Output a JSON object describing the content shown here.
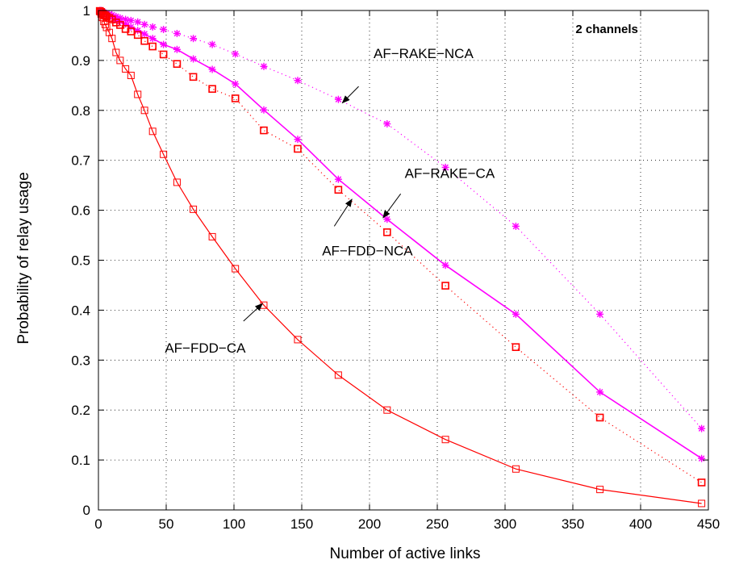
{
  "chart_data": {
    "type": "line",
    "xlabel": "Number of active links",
    "ylabel": "Probability of relay usage",
    "xlim": [
      0,
      450
    ],
    "ylim": [
      0,
      1
    ],
    "xticks": [
      0,
      50,
      100,
      150,
      200,
      250,
      300,
      350,
      400,
      450
    ],
    "yticks": [
      0,
      0.1,
      0.2,
      0.3,
      0.4,
      0.5,
      0.6,
      0.7,
      0.8,
      0.9,
      1
    ],
    "ytick_labels": [
      "0",
      "0.1",
      "0.2",
      "0.3",
      "0.4",
      "0.5",
      "0.6",
      "0.7",
      "0.8",
      "0.9",
      "1"
    ],
    "grid": true,
    "series": [
      {
        "name": "AF-RAKE-NCA",
        "color": "#ff00ff",
        "line": "dotted",
        "marker": "asterisk",
        "x": [
          1,
          2,
          3,
          4,
          5,
          6,
          8,
          10,
          13,
          16,
          20,
          24,
          29,
          34,
          40,
          48,
          58,
          70,
          84,
          101,
          122,
          147,
          177,
          213,
          256,
          308,
          370,
          445
        ],
        "y": [
          1.0,
          1.0,
          0.998,
          0.996,
          0.995,
          0.994,
          0.993,
          0.991,
          0.988,
          0.985,
          0.982,
          0.98,
          0.977,
          0.972,
          0.967,
          0.962,
          0.954,
          0.944,
          0.932,
          0.913,
          0.888,
          0.86,
          0.822,
          0.773,
          0.686,
          0.568,
          0.392,
          0.163
        ]
      },
      {
        "name": "AF-RAKE-CA",
        "color": "#ff00ff",
        "line": "solid",
        "marker": "asterisk",
        "x": [
          1,
          2,
          3,
          4,
          5,
          6,
          8,
          10,
          13,
          16,
          20,
          24,
          29,
          34,
          40,
          48,
          58,
          70,
          84,
          101,
          122,
          147,
          177,
          213,
          256,
          308,
          370,
          445
        ],
        "y": [
          1.0,
          0.999,
          0.997,
          0.995,
          0.993,
          0.992,
          0.989,
          0.986,
          0.982,
          0.978,
          0.973,
          0.967,
          0.96,
          0.953,
          0.944,
          0.932,
          0.922,
          0.903,
          0.882,
          0.853,
          0.801,
          0.742,
          0.662,
          0.582,
          0.49,
          0.392,
          0.236,
          0.103
        ]
      },
      {
        "name": "AF-FDD-NCA",
        "color": "#ff0000",
        "line": "dotted",
        "marker": "square",
        "x": [
          1,
          2,
          3,
          4,
          5,
          6,
          8,
          10,
          13,
          16,
          20,
          24,
          29,
          34,
          40,
          48,
          58,
          70,
          84,
          101,
          122,
          147,
          177,
          213,
          256,
          308,
          370,
          445
        ],
        "y": [
          0.999,
          0.997,
          0.994,
          0.991,
          0.99,
          0.988,
          0.985,
          0.982,
          0.976,
          0.971,
          0.963,
          0.958,
          0.951,
          0.939,
          0.928,
          0.912,
          0.893,
          0.867,
          0.843,
          0.824,
          0.76,
          0.723,
          0.641,
          0.556,
          0.449,
          0.326,
          0.185,
          0.055
        ]
      },
      {
        "name": "AF-FDD-CA",
        "color": "#ff0000",
        "line": "solid",
        "marker": "square",
        "x": [
          1,
          2,
          3,
          4,
          5,
          6,
          8,
          10,
          13,
          16,
          20,
          24,
          29,
          34,
          40,
          48,
          58,
          70,
          84,
          101,
          122,
          147,
          177,
          213,
          256,
          308,
          370,
          445
        ],
        "y": [
          0.998,
          0.993,
          0.986,
          0.978,
          0.972,
          0.966,
          0.956,
          0.944,
          0.916,
          0.9,
          0.883,
          0.87,
          0.832,
          0.8,
          0.758,
          0.712,
          0.656,
          0.602,
          0.547,
          0.483,
          0.41,
          0.341,
          0.27,
          0.2,
          0.141,
          0.082,
          0.041,
          0.013
        ]
      }
    ],
    "annotations": [
      {
        "text": "2 channels",
        "x": 352,
        "y": 0.955,
        "bold": true
      },
      {
        "text": "AF−RAKE−NCA",
        "x": 203,
        "y": 0.905,
        "arrow_to": [
          180,
          0.815
        ],
        "arrow_from": [
          192,
          0.848
        ]
      },
      {
        "text": "AF−RAKE−CA",
        "x": 226,
        "y": 0.665,
        "arrow_to": [
          210,
          0.585
        ],
        "arrow_from": [
          223,
          0.633
        ]
      },
      {
        "text": "AF−FDD−NCA",
        "x": 165,
        "y": 0.51,
        "arrow_to": [
          187,
          0.622
        ],
        "arrow_from": [
          174,
          0.568
        ]
      },
      {
        "text": "AF−FDD−CA",
        "x": 49,
        "y": 0.315,
        "arrow_to": [
          121,
          0.413
        ],
        "arrow_from": [
          107,
          0.378
        ]
      }
    ]
  }
}
